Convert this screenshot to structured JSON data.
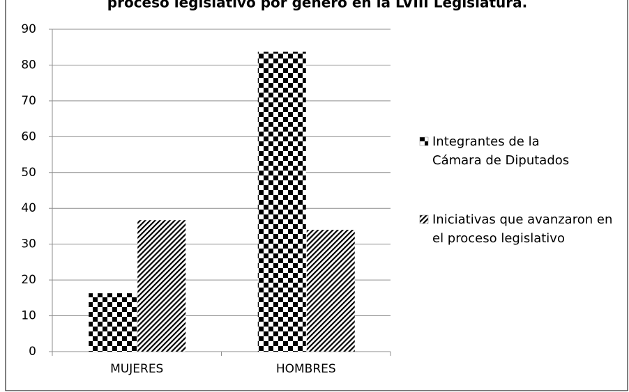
{
  "chart_data": {
    "type": "bar",
    "title": "proceso legislativo por género en la LVIII Legislatura.",
    "categories": [
      "MUJERES",
      "HOMBRES"
    ],
    "series": [
      {
        "name": "Integrantes de la Cámara de Diputados",
        "color": "#000000",
        "pattern": "checker",
        "values": [
          16.3,
          83.7
        ]
      },
      {
        "name": "Iniciativas que avanzaron en el proceso legislativo",
        "color": "#000000",
        "pattern": "hatch",
        "values": [
          36.7,
          34
        ]
      }
    ],
    "ylim": [
      0,
      90
    ],
    "yticks": [
      0,
      10,
      20,
      30,
      40,
      50,
      60,
      70,
      80,
      90
    ],
    "grid": true,
    "legend": "right"
  }
}
